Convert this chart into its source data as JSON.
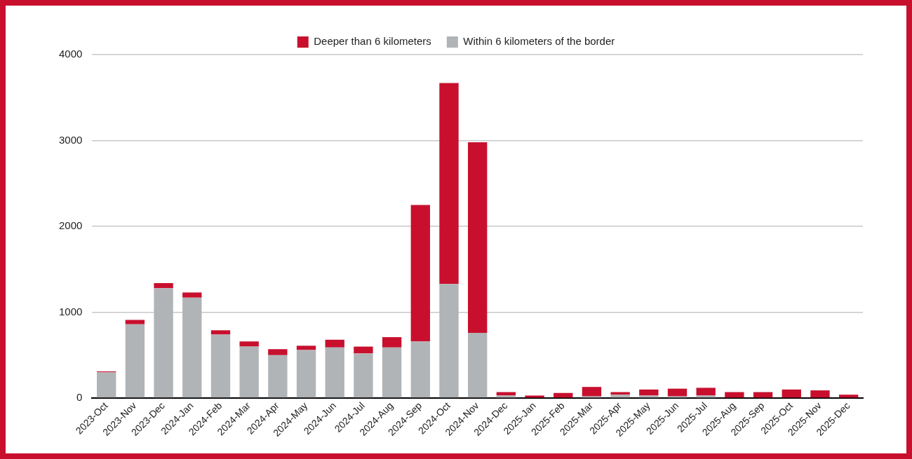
{
  "chart_data": {
    "type": "bar",
    "stacked": true,
    "legend": "top",
    "grid": "y",
    "categories": [
      "2023-Oct",
      "2023-Nov",
      "2023-Dec",
      "2024-Jan",
      "2024-Feb",
      "2024-Mar",
      "2024-Apr",
      "2024-May",
      "2024-Jun",
      "2024-Jul",
      "2024-Aug",
      "2024-Sep",
      "2024-Oct",
      "2024-Nov",
      "2024-Dec",
      "2025-Jan",
      "2025-Feb",
      "2025-Mar",
      "2025-Apr",
      "2025-May",
      "2025-Jun",
      "2025-Jul",
      "2025-Aug",
      "2025-Sep",
      "2025-Oct",
      "2025-Nov",
      "2025-Dec"
    ],
    "series": [
      {
        "name": "Within 6 kilometers of the border",
        "color": "#b1b4b6",
        "values": [
          300,
          860,
          1280,
          1170,
          740,
          600,
          500,
          560,
          590,
          520,
          590,
          660,
          1330,
          760,
          30,
          0,
          0,
          20,
          40,
          30,
          20,
          30,
          0,
          0,
          0,
          0,
          0
        ]
      },
      {
        "name": "Deeper than 6 kilometers",
        "color": "#c8102e",
        "values": [
          10,
          50,
          60,
          60,
          50,
          60,
          70,
          50,
          90,
          80,
          120,
          1590,
          2340,
          2220,
          40,
          30,
          60,
          110,
          30,
          70,
          90,
          90,
          70,
          70,
          100,
          90,
          40
        ]
      }
    ],
    "ylim": [
      0,
      4000
    ],
    "yticks": [
      0,
      1000,
      2000,
      3000,
      4000
    ]
  }
}
